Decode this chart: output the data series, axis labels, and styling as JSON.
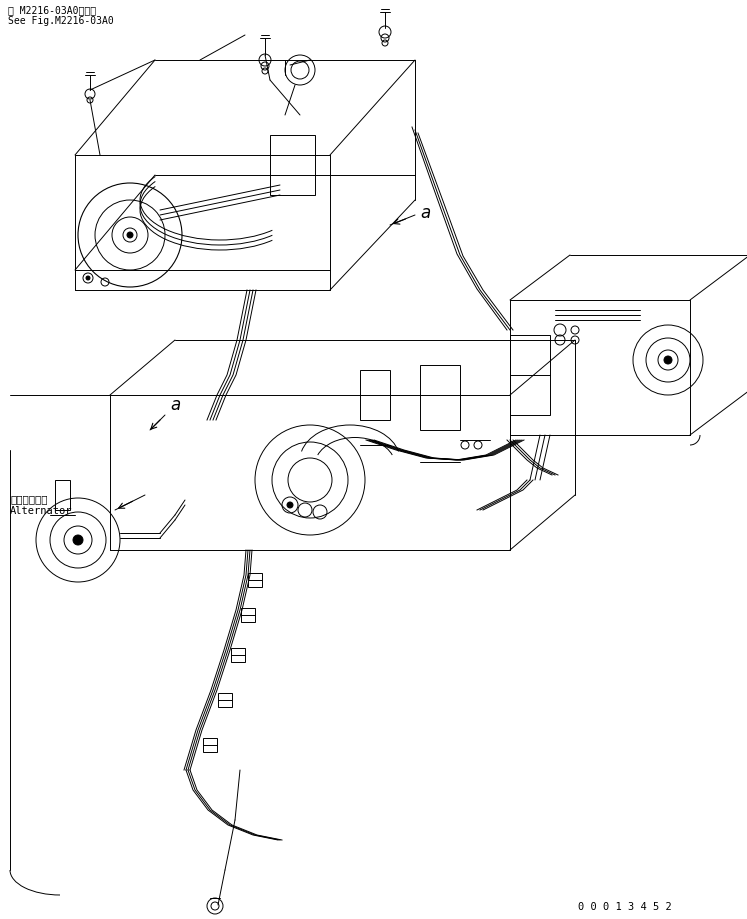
{
  "bg_color": "#ffffff",
  "line_color": "#000000",
  "fig_width": 7.47,
  "fig_height": 9.19,
  "dpi": 100,
  "top_label_line1": "第 M2216-03A0図参照",
  "top_label_line2": "See Fig.M2216-03A0",
  "bottom_id": "0 0 0 1 3 4 5 2",
  "alternator_jp": "オルタネータ",
  "alternator_en": "Alternator",
  "label_a": "a"
}
